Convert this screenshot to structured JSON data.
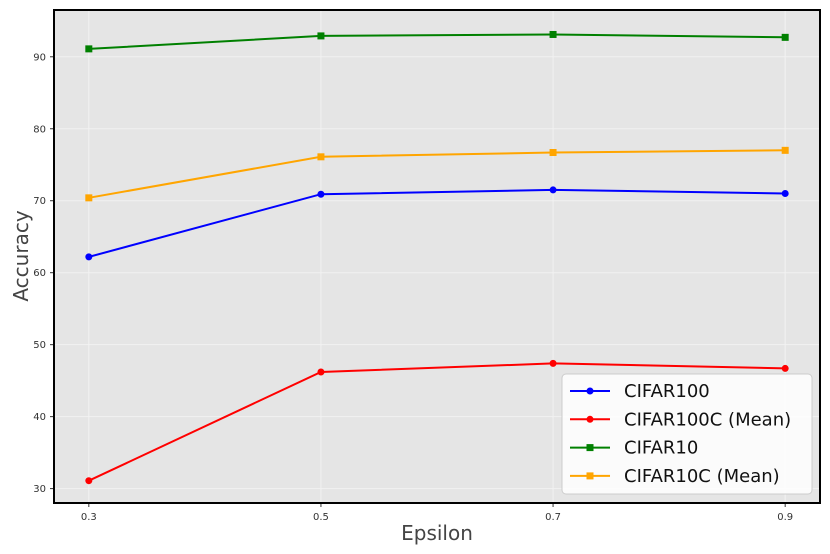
{
  "chart_data": {
    "type": "line",
    "xlabel": "Epsilon",
    "ylabel": "Accuracy",
    "x": [
      0.3,
      0.5,
      0.7,
      0.9
    ],
    "x_tick_labels": [
      "0.3",
      "0.5",
      "0.7",
      "0.9"
    ],
    "y_ticks": [
      30,
      40,
      50,
      60,
      70,
      80,
      90
    ],
    "xlim": [
      0.27,
      0.93
    ],
    "ylim": [
      28,
      96.5
    ],
    "grid": true,
    "legend_position": "bottom-right",
    "background": "#e5e5e5",
    "series": [
      {
        "name": "CIFAR100",
        "color": "#0000ff",
        "marker": "circle",
        "values": [
          62.2,
          70.9,
          71.5,
          71.0
        ]
      },
      {
        "name": "CIFAR100C (Mean)",
        "color": "#ff0000",
        "marker": "circle",
        "values": [
          31.1,
          46.2,
          47.4,
          46.7
        ]
      },
      {
        "name": "CIFAR10",
        "color": "#008000",
        "marker": "square",
        "values": [
          91.1,
          92.9,
          93.1,
          92.7
        ]
      },
      {
        "name": "CIFAR10C (Mean)",
        "color": "#ffa500",
        "marker": "square",
        "values": [
          70.4,
          76.1,
          76.7,
          77.0
        ]
      }
    ]
  }
}
